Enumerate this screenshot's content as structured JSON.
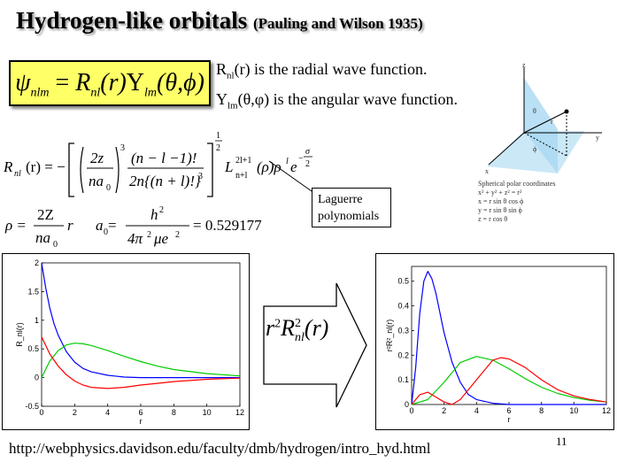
{
  "title": "Hydrogen-like orbitals",
  "title_ref": "(Pauling and Wilson 1935)",
  "psi_equation": {
    "lhs": "ψ",
    "lhs_sub": "nlm",
    "eq": " = ",
    "r": "R",
    "r_sub": "nl",
    "r_arg": "(r)",
    "y": "Y",
    "y_sub": "lm",
    "y_arg": "(θ,ϕ)"
  },
  "radial_desc": {
    "sym": "R",
    "sub": "nl",
    "text": "(r) is the radial wave function."
  },
  "angular_desc": {
    "sym": "Y",
    "sub": "lm",
    "text": "(θ,φ) is the angular wave function."
  },
  "rnl_formula": {
    "lhs": "R",
    "lhs_sub": "nl",
    "lhs_arg": "(r) = −",
    "frac1_num": "2z",
    "frac1_den": "na",
    "frac1_den_sub": "0",
    "pow3": "3",
    "frac2_num": "(n − l −1)!",
    "frac2_den": "2n{(n + l)!}",
    "frac2_den_pow": "3",
    "outer_pow_num": "1",
    "outer_pow_den": "2",
    "laguerre": "L",
    "laguerre_sup": "2l+1",
    "laguerre_sub": "n+l",
    "rest": "(ρ)ρ",
    "rho_pow": "l",
    "e": "e",
    "e_pow_num": "σ",
    "e_pow_den": "2",
    "e_pow_sign": "−"
  },
  "rho_formula": {
    "lhs": "ρ =",
    "num": "2Z",
    "den": "na",
    "den_sub": "0",
    "rest": "r"
  },
  "a0_formula": {
    "lhs": "a",
    "lhs_sub": "0",
    "eq": " =",
    "num": "h",
    "num_pow": "2",
    "den": "4π",
    "den_pow": "2",
    "den_rest": "μe",
    "den_rest_pow": "2",
    "value": "= 0.529177"
  },
  "laguerre_box": "Laguerre polynomials",
  "spherical": {
    "caption": "Spherical polar coordinates",
    "eqs": [
      "x² + y² + z² = r²",
      "x = r sin θ cos ϕ",
      "y = r sin θ sin ϕ",
      "z = r cos θ"
    ],
    "labels": {
      "z": "z",
      "y": "y",
      "x": "x",
      "theta": "θ",
      "phi": "ϕ",
      "r": "r"
    }
  },
  "arrow_label": {
    "r": "r",
    "r_pow": "2",
    "R": "R",
    "R_pow": "2",
    "R_sub": "nl",
    "arg": "(r)"
  },
  "url": "http://webphysics.davidson.edu/faculty/dmb/hydrogen/intro_hyd.html",
  "page_number": "11",
  "colors": {
    "blue": "#0000ff",
    "green": "#00cc00",
    "red": "#ff0000",
    "highlight": "#ffff66"
  },
  "chart_data": [
    {
      "type": "line",
      "xlabel": "r",
      "ylabel": "R_nl(r)",
      "xlim": [
        0,
        12
      ],
      "ylim": [
        -0.5,
        2
      ],
      "xticks": [
        0,
        2,
        4,
        6,
        8,
        10,
        12
      ],
      "yticks": [
        -0.5,
        0,
        0.5,
        1,
        1.5,
        2
      ],
      "ytick_labels": [
        "-0.5",
        "0",
        "0.5",
        "1",
        "1.5",
        "2"
      ],
      "series": [
        {
          "color": "#0000ff",
          "x": [
            0,
            0.25,
            0.5,
            0.75,
            1,
            1.5,
            2,
            2.5,
            3,
            4,
            5,
            6,
            8,
            10,
            12
          ],
          "y": [
            2,
            1.56,
            1.21,
            0.94,
            0.74,
            0.45,
            0.27,
            0.16,
            0.1,
            0.04,
            0.01,
            0.0,
            0.0,
            0.0,
            0.0
          ]
        },
        {
          "color": "#00cc00",
          "x": [
            0,
            0.5,
            1,
            1.5,
            2,
            2.5,
            3,
            4,
            5,
            6,
            7,
            8,
            10,
            12
          ],
          "y": [
            0,
            0.29,
            0.47,
            0.57,
            0.6,
            0.59,
            0.56,
            0.47,
            0.37,
            0.28,
            0.2,
            0.14,
            0.07,
            0.03
          ]
        },
        {
          "color": "#ff0000",
          "x": [
            0,
            0.5,
            1,
            1.5,
            2,
            2.5,
            3,
            4,
            5,
            6,
            7,
            8,
            10,
            12
          ],
          "y": [
            0.71,
            0.41,
            0.2,
            0.05,
            -0.06,
            -0.13,
            -0.17,
            -0.19,
            -0.17,
            -0.13,
            -0.1,
            -0.07,
            -0.03,
            -0.01
          ]
        }
      ]
    },
    {
      "type": "line",
      "xlabel": "r",
      "ylabel": "r²R²_nl(r)",
      "xlim": [
        0,
        12
      ],
      "ylim": [
        0,
        0.56
      ],
      "xticks": [
        0,
        2,
        4,
        6,
        8,
        10,
        12
      ],
      "yticks": [
        0,
        0.1,
        0.2,
        0.3,
        0.4,
        0.5
      ],
      "ytick_labels": [
        "0",
        "0.1",
        "0.2",
        "0.3",
        "0.4",
        "0.5"
      ],
      "series": [
        {
          "color": "#0000ff",
          "x": [
            0,
            0.25,
            0.5,
            0.75,
            1,
            1.25,
            1.5,
            2,
            2.5,
            3,
            3.5,
            4,
            5,
            6,
            8,
            10,
            12
          ],
          "y": [
            0,
            0.15,
            0.37,
            0.5,
            0.54,
            0.51,
            0.45,
            0.29,
            0.17,
            0.09,
            0.04,
            0.02,
            0.005,
            0.0,
            0.0,
            0.0,
            0.0
          ]
        },
        {
          "color": "#00cc00",
          "x": [
            0,
            1,
            2,
            3,
            4,
            5,
            6,
            7,
            8,
            9,
            10,
            11,
            12
          ],
          "y": [
            0,
            0.02,
            0.09,
            0.17,
            0.195,
            0.18,
            0.145,
            0.105,
            0.07,
            0.045,
            0.028,
            0.017,
            0.01
          ]
        },
        {
          "color": "#ff0000",
          "x": [
            0,
            0.5,
            1,
            1.5,
            2,
            2.5,
            3,
            4,
            5,
            5.5,
            6,
            7,
            8,
            9,
            10,
            11,
            12
          ],
          "y": [
            0,
            0.04,
            0.05,
            0.03,
            0.01,
            0.0,
            0.02,
            0.1,
            0.18,
            0.19,
            0.185,
            0.15,
            0.1,
            0.06,
            0.035,
            0.02,
            0.01
          ]
        }
      ]
    }
  ]
}
